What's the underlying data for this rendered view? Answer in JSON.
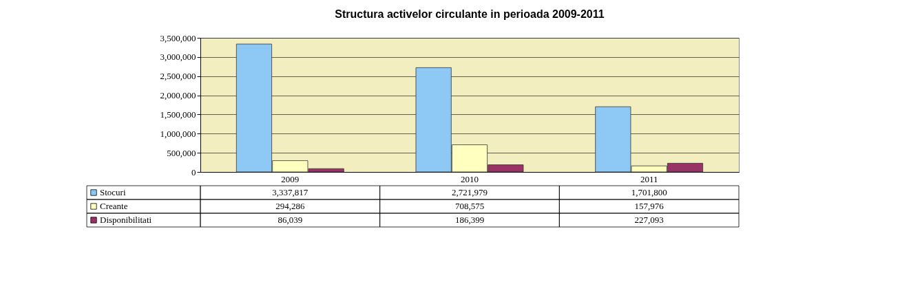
{
  "chart_data": {
    "type": "bar",
    "title": "Structura activelor circulante in perioada 2009-2011",
    "categories": [
      "2009",
      "2010",
      "2011"
    ],
    "series": [
      {
        "name": "Stocuri",
        "color": "#8ec8f4",
        "values": [
          3337817,
          2721979,
          1701800
        ],
        "value_labels": [
          "3,337,817",
          "2,721,979",
          "1,701,800"
        ]
      },
      {
        "name": "Creante",
        "color": "#ffffc0",
        "values": [
          294286,
          708575,
          157976
        ],
        "value_labels": [
          "294,286",
          "708,575",
          "157,976"
        ]
      },
      {
        "name": "Disponibilitati",
        "color": "#993366",
        "values": [
          86039,
          186399,
          227093
        ],
        "value_labels": [
          "86,039",
          "186,399",
          "227,093"
        ]
      }
    ],
    "ylim": [
      0,
      3500000
    ],
    "yticks": [
      0,
      {
        "value": 500000,
        "label": "500,000"
      },
      {
        "value": 1000000,
        "label": "1,000,000"
      },
      {
        "value": 1500000,
        "label": "1,500,000"
      },
      {
        "value": 2000000,
        "label": "2,000,000"
      },
      {
        "value": 2500000,
        "label": "2,500,000"
      },
      {
        "value": 3000000,
        "label": "3,000,000"
      },
      {
        "value": 3500000,
        "label": "3,500,000"
      }
    ],
    "grid": "y",
    "legend": "bottom"
  }
}
